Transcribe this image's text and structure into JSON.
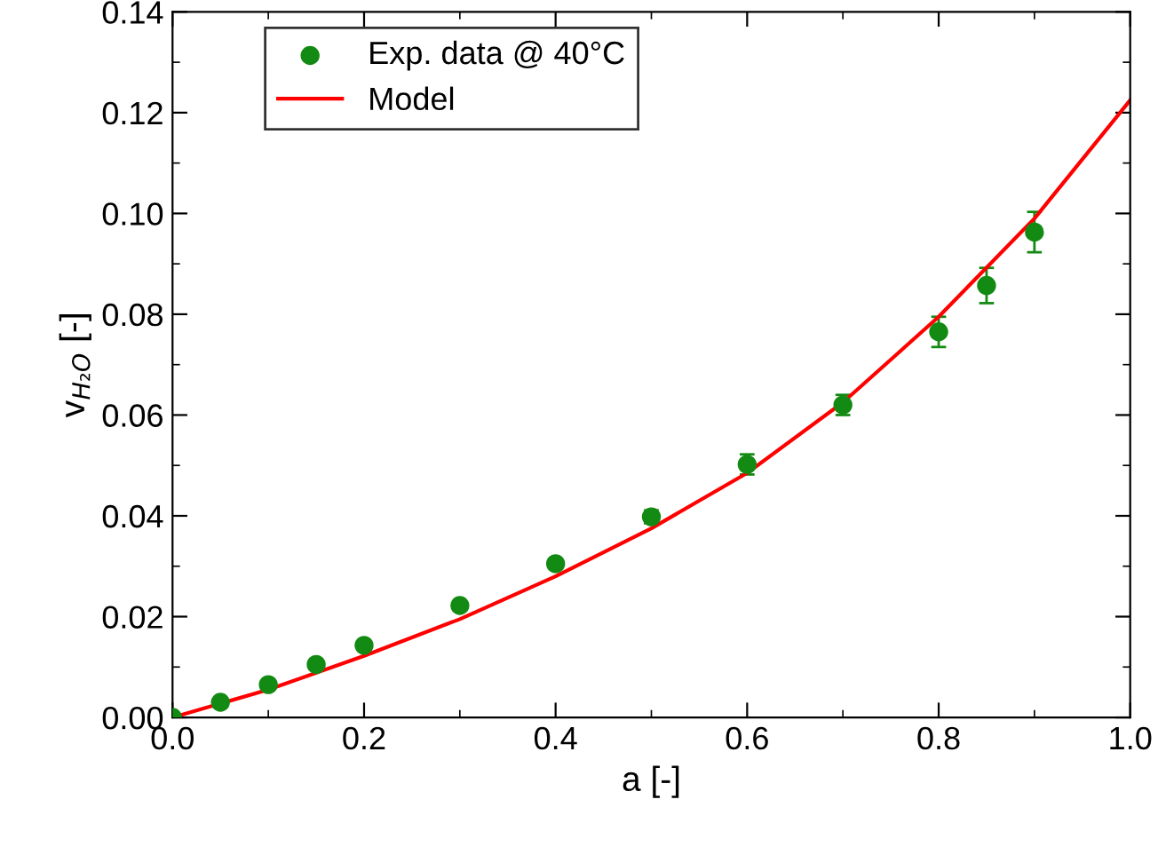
{
  "chart_data": {
    "type": "scatter",
    "xlabel": "a [-]",
    "ylabel": "v$_{H₂O}$ [-]",
    "xlim": [
      0.0,
      1.0
    ],
    "xticks": [
      {
        "value": 0.0,
        "label": "0.0"
      },
      0.2,
      0.4,
      0.6,
      0.8,
      {
        "value": 1.0,
        "label": "1.0"
      }
    ],
    "ylim": [
      0.0,
      0.14
    ],
    "yticks": [
      {
        "value": 0.0,
        "label": "0.00"
      },
      0.02,
      0.04,
      0.06,
      0.08,
      {
        "value": 0.1,
        "label": "0.10"
      },
      0.12,
      0.14
    ],
    "legend": "top left",
    "grid": false,
    "series": [
      {
        "name": "Exp. data @ 40°C",
        "color": "#138a13",
        "marker": "circle",
        "x": [
          0.0,
          0.05,
          0.1,
          0.15,
          0.2,
          0.3,
          0.4,
          0.5,
          0.6,
          0.7,
          0.8,
          0.85,
          0.9
        ],
        "values": [
          0.0,
          0.003,
          0.0065,
          0.0105,
          0.0143,
          0.0222,
          0.0305,
          0.0398,
          0.0502,
          0.062,
          0.0765,
          0.0857,
          0.0963
        ],
        "errors": [
          null,
          null,
          null,
          null,
          null,
          null,
          null,
          0.0013,
          0.002,
          0.002,
          0.003,
          0.0035,
          0.004
        ]
      },
      {
        "name": "Model",
        "type": "line",
        "color": "#ff0000",
        "line_style": "solid",
        "x": [
          0.0,
          0.1,
          0.2,
          0.3,
          0.4,
          0.5,
          0.6,
          0.7,
          0.8,
          0.9,
          1.0
        ],
        "values": [
          0.0,
          0.0055,
          0.0122,
          0.0195,
          0.028,
          0.0375,
          0.0485,
          0.0625,
          0.0795,
          0.099,
          0.1225
        ]
      }
    ]
  }
}
